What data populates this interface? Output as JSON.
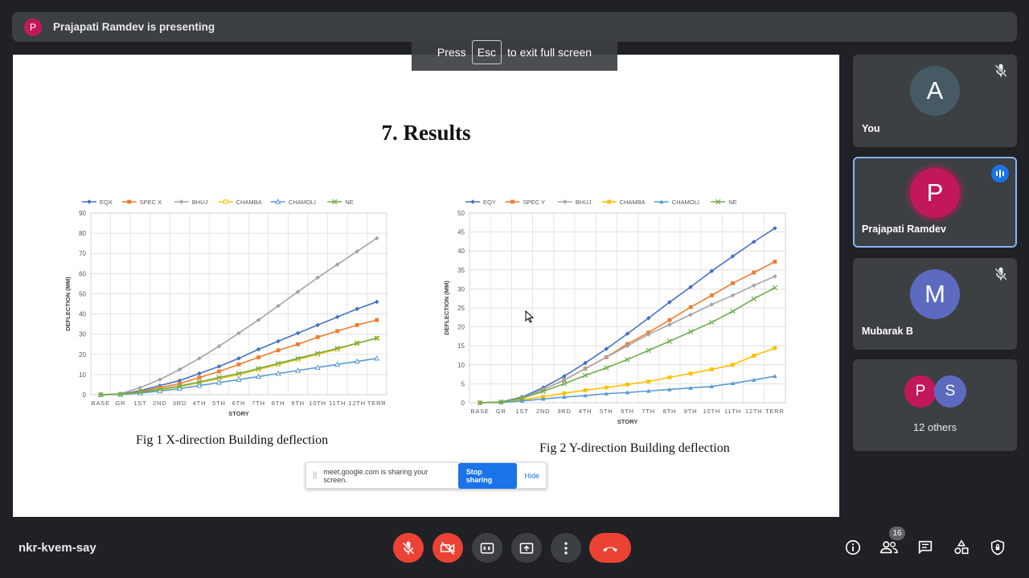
{
  "presenter_bar": {
    "avatar_letter": "P",
    "text": "Prajapati Ramdev is presenting"
  },
  "fullscreen_toast": {
    "prefix": "Press",
    "key": "Esc",
    "suffix": "to exit full screen"
  },
  "slide": {
    "title": "7. Results",
    "caption1": "Fig 1 X-direction Building deflection",
    "caption2": "Fig 2 Y-direction Building deflection"
  },
  "chart_data": [
    {
      "type": "line",
      "xlabel": "STORY",
      "ylabel": "DEFLECTION (MM)",
      "ylim": [
        0,
        90
      ],
      "yticks": [
        0,
        10,
        20,
        30,
        40,
        50,
        60,
        70,
        80,
        90
      ],
      "grid": true,
      "legend": "top",
      "categories": [
        "BASE",
        "GR",
        "1ST",
        "2ND",
        "3RD",
        "4TH",
        "5TH",
        "6TH",
        "7TH",
        "8TH",
        "9TH",
        "10TH",
        "11TH",
        "12TH",
        "TERR"
      ],
      "series": [
        {
          "name": "EQX",
          "color": "#4472c4",
          "marker": "diamond",
          "values": [
            0,
            0.3,
            2,
            4.5,
            7,
            10.5,
            14,
            18,
            22.5,
            26.5,
            30.5,
            34.5,
            38.5,
            42.5,
            46
          ]
        },
        {
          "name": "SPEC X",
          "color": "#ed7d31",
          "marker": "square",
          "values": [
            0,
            0.2,
            1.5,
            3.5,
            5.5,
            8.5,
            11.5,
            15,
            18.5,
            22,
            25,
            28.5,
            31.5,
            34.5,
            37
          ]
        },
        {
          "name": "BHUJ",
          "color": "#a5a5a5",
          "marker": "diamond",
          "values": [
            0,
            0.5,
            3.5,
            7.5,
            12.5,
            18,
            24,
            30.5,
            37,
            44,
            51,
            58,
            64.5,
            71,
            77.5
          ]
        },
        {
          "name": "CHAMBA",
          "color": "#ffc000",
          "marker": "square-open",
          "values": [
            0,
            0.2,
            1,
            2.5,
            4,
            6,
            8,
            10,
            12.5,
            15,
            17.5,
            20,
            22.5,
            25.5,
            28
          ]
        },
        {
          "name": "CHAMOLI",
          "color": "#5b9bd5",
          "marker": "triangle-open",
          "values": [
            0,
            0.1,
            0.8,
            1.8,
            3,
            4.5,
            6,
            7.5,
            9,
            10.5,
            12,
            13.5,
            15,
            16.5,
            18
          ]
        },
        {
          "name": "NE",
          "color": "#70ad47",
          "marker": "x",
          "values": [
            0,
            0.2,
            1.2,
            2.7,
            4.3,
            6.3,
            8.5,
            10.5,
            13,
            15.5,
            18,
            20.5,
            23,
            25.5,
            28
          ]
        }
      ]
    },
    {
      "type": "line",
      "xlabel": "STORY",
      "ylabel": "DEFLECTION (MM)",
      "ylim": [
        0,
        50
      ],
      "yticks": [
        0,
        5,
        10,
        15,
        20,
        25,
        30,
        35,
        40,
        45,
        50
      ],
      "grid": true,
      "legend": "top",
      "categories": [
        "BASE",
        "GR",
        "1ST",
        "2ND",
        "3RD",
        "4TH",
        "5TH",
        "6TH",
        "7TH",
        "8TH",
        "9TH",
        "10TH",
        "11TH",
        "12TH",
        "TERR"
      ],
      "series": [
        {
          "name": "EQY",
          "color": "#4472c4",
          "marker": "diamond",
          "values": [
            0,
            0.2,
            1.5,
            4,
            7,
            10.5,
            14.2,
            18.2,
            22.3,
            26.5,
            30.5,
            34.7,
            38.6,
            42.4,
            46
          ]
        },
        {
          "name": "SPEC Y",
          "color": "#ed7d31",
          "marker": "square",
          "values": [
            0,
            0.2,
            1.2,
            3.5,
            6,
            9,
            12,
            15.5,
            18.5,
            21.8,
            25.2,
            28.3,
            31.5,
            34.3,
            37.2
          ]
        },
        {
          "name": "BHUJ",
          "color": "#a5a5a5",
          "marker": "diamond",
          "values": [
            0,
            0.2,
            1.2,
            3.5,
            6,
            9,
            12,
            15,
            18,
            20.6,
            23.2,
            25.9,
            28.3,
            30.9,
            33.3
          ]
        },
        {
          "name": "CHAMBA",
          "color": "#ffc000",
          "marker": "square",
          "values": [
            0,
            0.1,
            0.8,
            1.6,
            2.5,
            3.3,
            4,
            4.8,
            5.6,
            6.7,
            7.7,
            8.8,
            10,
            12.4,
            14.4
          ]
        },
        {
          "name": "CHAMOLI",
          "color": "#5b9bd5",
          "marker": "triangle",
          "values": [
            0,
            0.1,
            0.5,
            1,
            1.5,
            1.9,
            2.4,
            2.7,
            3.1,
            3.5,
            3.9,
            4.3,
            5.1,
            6,
            7
          ]
        },
        {
          "name": "NE",
          "color": "#70ad47",
          "marker": "x",
          "values": [
            0,
            0.2,
            1.2,
            3,
            5,
            7.2,
            9.2,
            11.4,
            13.8,
            16.2,
            18.7,
            21.2,
            24.1,
            27.4,
            30.3
          ]
        }
      ]
    }
  ],
  "share_bar": {
    "grip": "||",
    "text": "meet.google.com is sharing your screen.",
    "stop": "Stop sharing",
    "hide": "Hide"
  },
  "participants": {
    "you": {
      "letter": "A",
      "name": "You",
      "color": "#455a64"
    },
    "presenter": {
      "letter": "P",
      "name": "Prajapati Ramdev",
      "color": "#c2185b"
    },
    "mubarak": {
      "letter": "M",
      "name": "Mubarak B",
      "color": "#5c6bc0"
    },
    "others": {
      "letter1": "P",
      "letter2": "S",
      "color1": "#c2185b",
      "color2": "#5c6bc0",
      "label": "12 others"
    }
  },
  "bottom": {
    "meeting_code": "nkr-kvem-say",
    "people_count": "16"
  }
}
